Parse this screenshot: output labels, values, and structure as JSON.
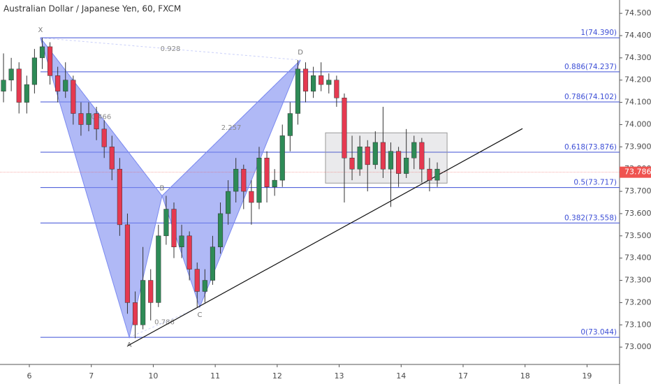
{
  "chart_data": {
    "type": "candlestick",
    "title": "Australian Dollar / Japanese Yen, 60, FXCM",
    "xlim": [
      -11.36,
      228.6
    ],
    "ylim": [
      72.922,
      74.56
    ],
    "xticks": [
      {
        "value": 0,
        "label": "6"
      },
      {
        "value": 24,
        "label": "7"
      },
      {
        "value": 48,
        "label": "10"
      },
      {
        "value": 72,
        "label": "11"
      },
      {
        "value": 96,
        "label": "12"
      },
      {
        "value": 120,
        "label": "13"
      },
      {
        "value": 144,
        "label": "14"
      },
      {
        "value": 168,
        "label": "17"
      },
      {
        "value": 192,
        "label": "18"
      },
      {
        "value": 216,
        "label": "19"
      }
    ],
    "yticks": [
      {
        "value": 73.0,
        "label": "73.000"
      },
      {
        "value": 73.1,
        "label": "73.100"
      },
      {
        "value": 73.2,
        "label": "73.200"
      },
      {
        "value": 73.3,
        "label": "73.300"
      },
      {
        "value": 73.4,
        "label": "73.400"
      },
      {
        "value": 73.5,
        "label": "73.500"
      },
      {
        "value": 73.6,
        "label": "73.600"
      },
      {
        "value": 73.7,
        "label": "73.700"
      },
      {
        "value": 73.8,
        "label": "73.800"
      },
      {
        "value": 73.9,
        "label": "73.900"
      },
      {
        "value": 74.0,
        "label": "74.000"
      },
      {
        "value": 74.1,
        "label": "74.100"
      },
      {
        "value": 74.2,
        "label": "74.200"
      },
      {
        "value": 74.3,
        "label": "74.300"
      },
      {
        "value": 74.4,
        "label": "74.400"
      },
      {
        "value": 74.5,
        "label": "74.500"
      }
    ],
    "up_color": "#2e8b57",
    "down_color": "#e53950",
    "x": [
      -10,
      -7,
      -4,
      -1,
      2,
      5,
      8,
      11,
      14,
      17,
      20,
      23,
      26,
      29,
      32,
      35,
      38,
      41,
      44,
      47,
      50,
      53,
      56,
      59,
      62,
      65,
      68,
      71,
      74,
      77,
      80,
      83,
      86,
      89,
      92,
      95,
      98,
      101,
      104,
      107,
      110,
      113,
      116,
      119,
      122,
      125,
      128,
      131,
      134,
      137,
      140,
      143,
      146,
      149,
      152,
      155,
      158
    ],
    "ohlc": [
      [
        74.15,
        74.32,
        74.1,
        74.2
      ],
      [
        74.2,
        74.3,
        74.15,
        74.25
      ],
      [
        74.25,
        74.28,
        74.05,
        74.1
      ],
      [
        74.1,
        74.22,
        74.05,
        74.18
      ],
      [
        74.18,
        74.34,
        74.14,
        74.3
      ],
      [
        74.3,
        74.39,
        74.25,
        74.35
      ],
      [
        74.35,
        74.37,
        74.18,
        74.22
      ],
      [
        74.22,
        74.26,
        74.1,
        74.15
      ],
      [
        74.15,
        74.28,
        74.12,
        74.2
      ],
      [
        74.2,
        74.22,
        74.0,
        74.05
      ],
      [
        74.05,
        74.1,
        73.95,
        74.0
      ],
      [
        74.0,
        74.1,
        73.97,
        74.05
      ],
      [
        74.05,
        74.08,
        73.93,
        73.98
      ],
      [
        73.98,
        74.02,
        73.85,
        73.9
      ],
      [
        73.9,
        73.95,
        73.75,
        73.8
      ],
      [
        73.8,
        73.85,
        73.5,
        73.55
      ],
      [
        73.55,
        73.6,
        73.15,
        73.2
      ],
      [
        73.2,
        73.25,
        73.04,
        73.1
      ],
      [
        73.1,
        73.45,
        73.08,
        73.3
      ],
      [
        73.3,
        73.35,
        73.12,
        73.2
      ],
      [
        73.2,
        73.55,
        73.18,
        73.5
      ],
      [
        73.5,
        73.68,
        73.46,
        73.62
      ],
      [
        73.62,
        73.65,
        73.4,
        73.45
      ],
      [
        73.45,
        73.55,
        73.4,
        73.5
      ],
      [
        73.5,
        73.52,
        73.3,
        73.35
      ],
      [
        73.35,
        73.38,
        73.18,
        73.25
      ],
      [
        73.25,
        73.35,
        73.2,
        73.3
      ],
      [
        73.3,
        73.5,
        73.28,
        73.45
      ],
      [
        73.45,
        73.65,
        73.42,
        73.6
      ],
      [
        73.6,
        73.75,
        73.55,
        73.7
      ],
      [
        73.7,
        73.85,
        73.65,
        73.8
      ],
      [
        73.8,
        73.82,
        73.62,
        73.7
      ],
      [
        73.7,
        73.75,
        73.55,
        73.65
      ],
      [
        73.65,
        73.9,
        73.62,
        73.85
      ],
      [
        73.85,
        73.88,
        73.65,
        73.72
      ],
      [
        73.72,
        73.8,
        73.68,
        73.75
      ],
      [
        73.75,
        74.0,
        73.72,
        73.95
      ],
      [
        73.95,
        74.1,
        73.88,
        74.05
      ],
      [
        74.05,
        74.29,
        74.0,
        74.25
      ],
      [
        74.25,
        74.28,
        74.1,
        74.15
      ],
      [
        74.15,
        74.26,
        74.12,
        74.22
      ],
      [
        74.22,
        74.28,
        74.15,
        74.18
      ],
      [
        74.18,
        74.23,
        74.14,
        74.2
      ],
      [
        74.2,
        74.22,
        74.08,
        74.12
      ],
      [
        74.12,
        74.14,
        73.65,
        73.85
      ],
      [
        73.85,
        73.95,
        73.75,
        73.8
      ],
      [
        73.8,
        73.95,
        73.77,
        73.9
      ],
      [
        73.9,
        73.93,
        73.7,
        73.82
      ],
      [
        73.82,
        73.97,
        73.8,
        73.92
      ],
      [
        73.92,
        74.08,
        73.76,
        73.8
      ],
      [
        73.8,
        73.92,
        73.63,
        73.88
      ],
      [
        73.88,
        73.9,
        73.72,
        73.78
      ],
      [
        73.78,
        73.98,
        73.76,
        73.85
      ],
      [
        73.85,
        73.95,
        73.8,
        73.92
      ],
      [
        73.92,
        73.94,
        73.74,
        73.8
      ],
      [
        73.8,
        73.85,
        73.7,
        73.75
      ],
      [
        73.75,
        73.83,
        73.72,
        73.8
      ]
    ],
    "fib_color": "#3d4fd6",
    "fib_levels": [
      {
        "value": 74.39,
        "label": "1(74.390)"
      },
      {
        "value": 74.237,
        "label": "0.886(74.237)"
      },
      {
        "value": 74.102,
        "label": "0.786(74.102)"
      },
      {
        "value": 73.876,
        "label": "0.618(73.876)"
      },
      {
        "value": 73.717,
        "label": "0.5(73.717)"
      },
      {
        "value": 73.558,
        "label": "0.382(73.558)"
      },
      {
        "value": 73.044,
        "label": "0(73.044)"
      }
    ],
    "pattern": {
      "color": "#7b8af0",
      "points": [
        {
          "label": "X",
          "x": 4.3,
          "y": 74.39
        },
        {
          "label": "A",
          "x": 38.7,
          "y": 73.044
        },
        {
          "label": "B",
          "x": 51.4,
          "y": 73.68
        },
        {
          "label": "C",
          "x": 66,
          "y": 73.18
        },
        {
          "label": "D",
          "x": 105,
          "y": 74.29
        }
      ],
      "ratios": [
        "0.466",
        "0.786",
        "2.257",
        "0.928"
      ]
    },
    "trendline": {
      "x": [
        38.1,
        191
      ],
      "y": [
        73.006,
        73.982
      ]
    },
    "range_box": {
      "x": [
        114.7,
        161.8
      ],
      "y": [
        73.737,
        73.963
      ]
    },
    "current_price": {
      "value": 73.786,
      "label": "73.786",
      "color": "#ef5350"
    }
  }
}
